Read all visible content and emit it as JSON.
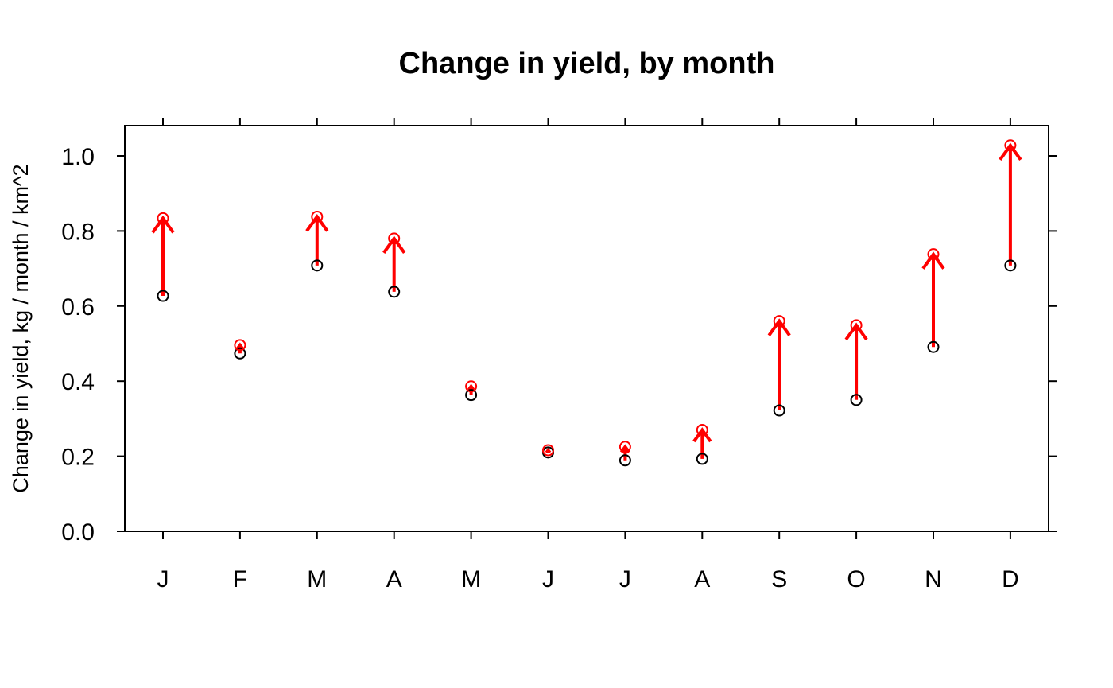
{
  "chart_data": {
    "type": "scatter",
    "title": "Change in yield, by month",
    "xlabel": "",
    "ylabel": "Change in yield, kg / month / km^2",
    "categories": [
      "J",
      "F",
      "M",
      "A",
      "M",
      "J",
      "J",
      "A",
      "S",
      "O",
      "N",
      "D"
    ],
    "ylim": [
      0.0,
      1.08
    ],
    "yticks": [
      "0.0",
      "0.2",
      "0.4",
      "0.6",
      "0.8",
      "1.0"
    ],
    "ytick_values": [
      0.0,
      0.2,
      0.4,
      0.6,
      0.8,
      1.0
    ],
    "grid": false,
    "series": [
      {
        "color": "#000000",
        "marker": "open-circle",
        "values": [
          0.627,
          0.474,
          0.708,
          0.638,
          0.363,
          0.21,
          0.189,
          0.193,
          0.322,
          0.35,
          0.491,
          0.708
        ]
      },
      {
        "color": "#ff0000",
        "marker": "open-circle",
        "values": [
          0.834,
          0.496,
          0.838,
          0.78,
          0.386,
          0.216,
          0.225,
          0.27,
          0.56,
          0.549,
          0.738,
          1.028
        ]
      }
    ],
    "arrows": {
      "color": "#ff0000",
      "from_series": 0,
      "to_series": 1
    }
  }
}
